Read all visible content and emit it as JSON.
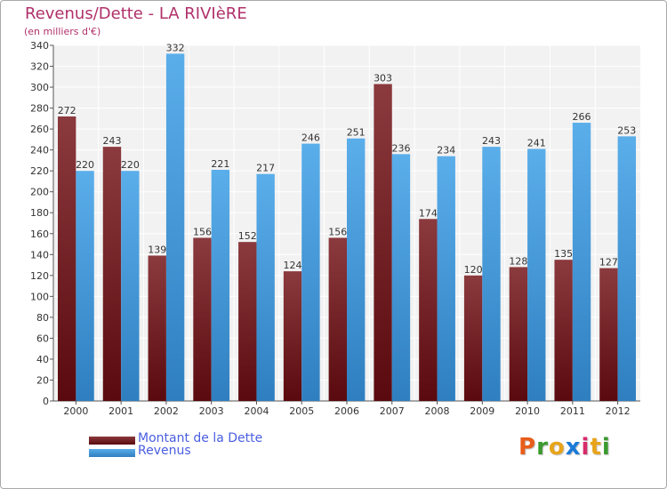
{
  "title": "Revenus/Dette - LA RIVIèRE",
  "subtitle": "(en milliers d'€)",
  "colors": {
    "title": "#b0306a",
    "legend_text": "#4a5ee0",
    "dette_light": "#8b3a3e",
    "dette_dark": "#5a0a0e",
    "revenus_light": "#5aaeea",
    "revenus_dark": "#2f7fc0"
  },
  "chart_data": {
    "type": "bar",
    "categories": [
      "2000",
      "2001",
      "2002",
      "2003",
      "2004",
      "2005",
      "2006",
      "2007",
      "2008",
      "2009",
      "2010",
      "2011",
      "2012"
    ],
    "series": [
      {
        "name": "Montant de la Dette",
        "values": [
          272,
          243,
          139,
          156,
          152,
          124,
          156,
          303,
          174,
          120,
          128,
          135,
          127
        ]
      },
      {
        "name": "Revenus",
        "values": [
          220,
          220,
          332,
          221,
          217,
          246,
          251,
          236,
          234,
          243,
          241,
          266,
          253
        ]
      }
    ],
    "ylim": [
      0,
      340
    ],
    "ytick_step": 20,
    "grid": true,
    "data_labels": true,
    "legend_position": "bottom-left"
  },
  "legend": {
    "dette_label": "Montant de la Dette",
    "revenus_label": "Revenus"
  },
  "logo": {
    "letters": [
      "P",
      "r",
      "o",
      "x",
      "i",
      "t",
      "i"
    ],
    "colors": [
      "#e85d1a",
      "#3a9a2e",
      "#e8a41a",
      "#1a7ad8",
      "#d82a6a",
      "#e8a41a",
      "#3a9a2e"
    ]
  }
}
